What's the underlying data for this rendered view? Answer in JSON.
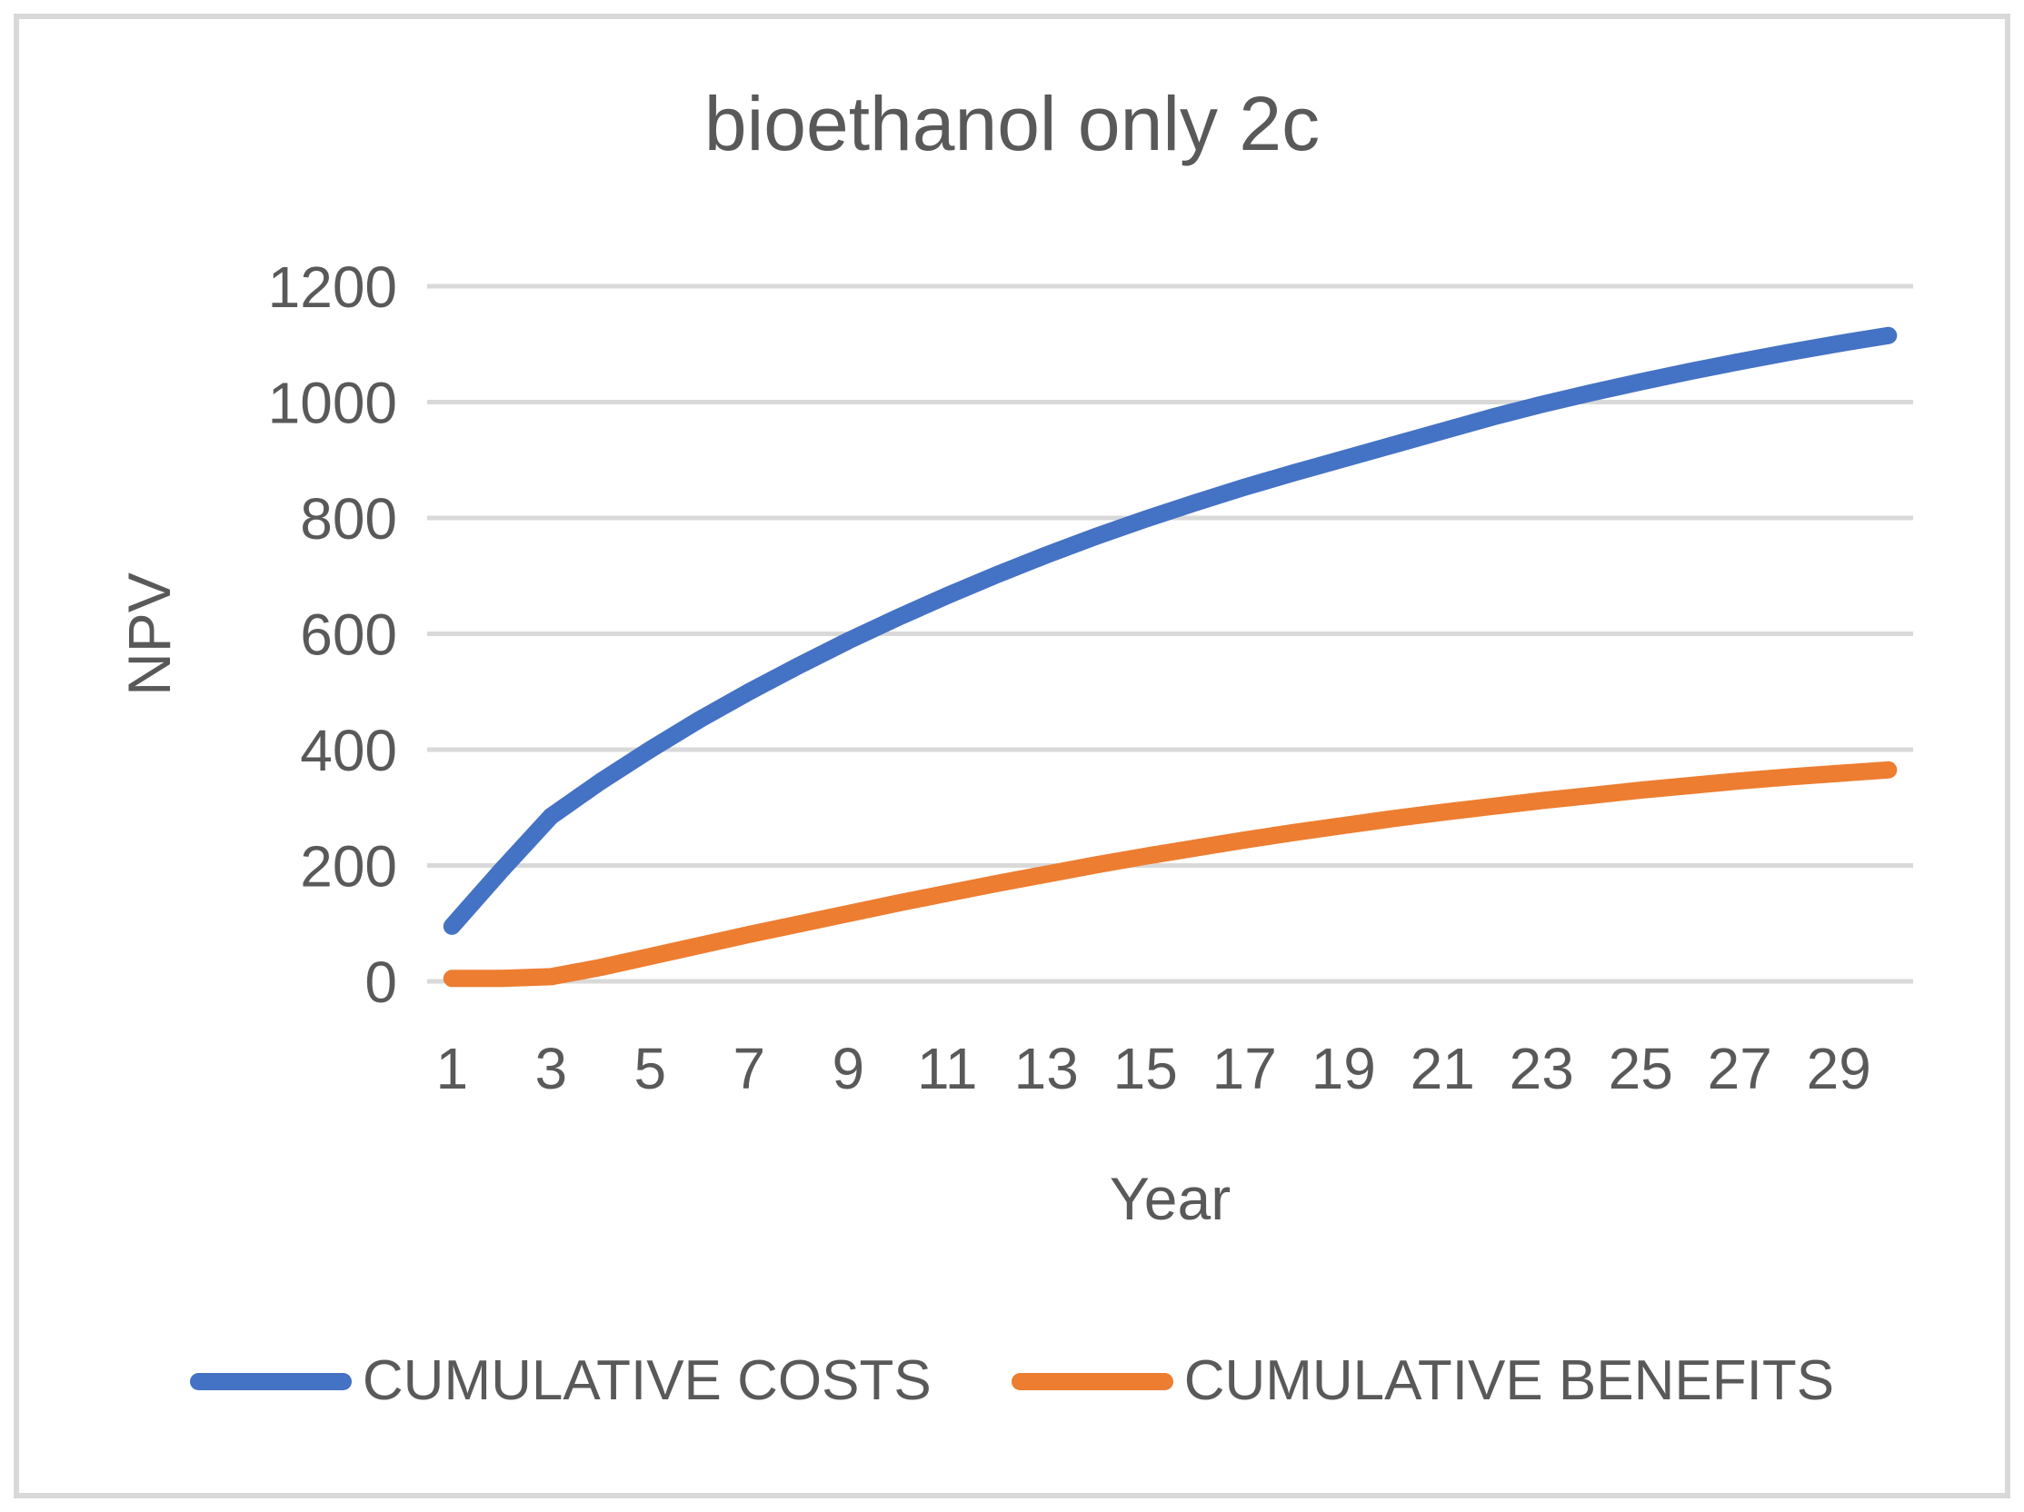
{
  "chart_data": {
    "type": "line",
    "title": "bioethanol only 2c",
    "xlabel": "Year",
    "ylabel": "NPV",
    "x": [
      1,
      2,
      3,
      4,
      5,
      6,
      7,
      8,
      9,
      10,
      11,
      12,
      13,
      14,
      15,
      16,
      17,
      18,
      19,
      20,
      21,
      22,
      23,
      24,
      25,
      26,
      27,
      28,
      29,
      30
    ],
    "x_tick_values": [
      1,
      3,
      5,
      7,
      9,
      11,
      13,
      15,
      17,
      19,
      21,
      23,
      25,
      27,
      29
    ],
    "ylim": [
      0,
      1200
    ],
    "y_ticks": [
      0,
      200,
      400,
      600,
      800,
      1000,
      1200
    ],
    "grid": true,
    "gridline_color": "#D9D9D9",
    "text_color": "#595959",
    "legend_position": "bottom",
    "series": [
      {
        "name": "CUMULATIVE COSTS",
        "color": "#4472C4",
        "values": [
          95,
          192,
          285,
          345,
          400,
          452,
          500,
          545,
          588,
          628,
          666,
          702,
          736,
          768,
          798,
          826,
          853,
          878,
          902,
          926,
          950,
          974,
          996,
          1016,
          1035,
          1053,
          1070,
          1086,
          1101,
          1115
        ]
      },
      {
        "name": "CUMULATIVE BENEFITS",
        "color": "#ED7D31",
        "values": [
          5,
          5,
          8,
          24,
          43,
          62,
          81,
          99,
          117,
          135,
          152,
          169,
          185,
          201,
          216,
          230,
          244,
          257,
          269,
          281,
          292,
          302,
          312,
          321,
          330,
          338,
          346,
          353,
          359,
          365
        ]
      }
    ]
  }
}
